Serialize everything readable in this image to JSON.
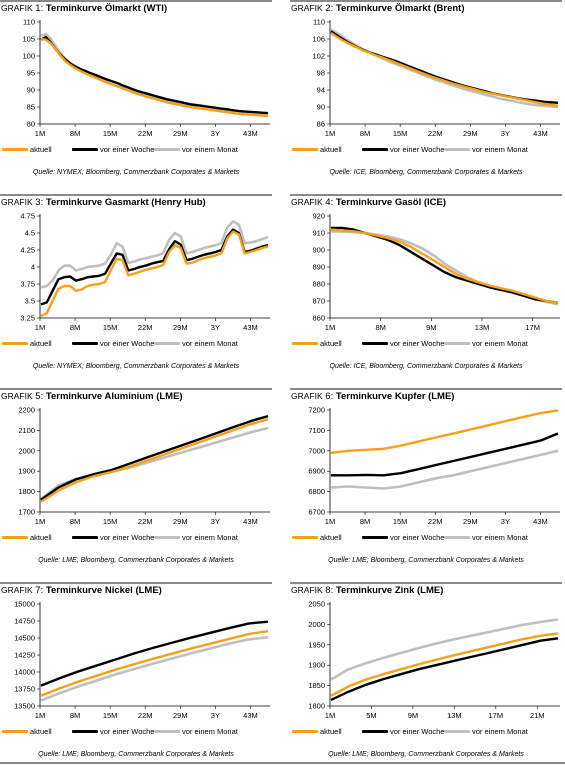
{
  "colors": {
    "aktuell": "#f5a01a",
    "woche": "#000000",
    "monat": "#bfbfbf",
    "axis": "#000000",
    "rule": "#8a8a8a"
  },
  "legend": {
    "aktuell": "aktuell",
    "woche": "vor einer Woche",
    "monat": "vor einem Monat"
  },
  "charts": [
    {
      "prefix": "GRAFIK",
      "number": "1:",
      "title": "Terminkurve Ölmarkt (WTI)",
      "source": "Quelle: NYMEX; Bloomberg, Commerzbank Corporates & Markets",
      "chart_data": {
        "type": "line",
        "xlabels": [
          "1M",
          "8M",
          "15M",
          "22M",
          "29M",
          "3Y",
          "43M"
        ],
        "ylabels": [
          "80",
          "85",
          "90",
          "95",
          "100",
          "105",
          "110"
        ],
        "ylim": [
          80,
          110
        ],
        "series": [
          {
            "key": "aktuell",
            "values": [
              105,
              104.8,
              103.8,
              102,
              100.2,
              98.6,
              97.4,
              96.5,
              95.7,
              95,
              94.4,
              93.8,
              93.2,
              92.6,
              92,
              91.5,
              91,
              90.4,
              89.9,
              89.3,
              88.8,
              88.4,
              88,
              87.6,
              87.2,
              86.8,
              86.4,
              86.1,
              85.8,
              85.5,
              85.2,
              85,
              84.8,
              84.6,
              84.4,
              84.2,
              84,
              83.8,
              83.6,
              83.4,
              83.2,
              83,
              82.9,
              82.8,
              82.7,
              82.6,
              82.5,
              82.4
            ]
          },
          {
            "key": "woche",
            "values": [
              104.8,
              105.6,
              104,
              102,
              100.4,
              99,
              97.9,
              97,
              96.3,
              95.7,
              95.1,
              94.6,
              94,
              93.4,
              92.9,
              92.4,
              91.9,
              91.3,
              90.8,
              90.2,
              89.7,
              89.3,
              88.9,
              88.5,
              88.1,
              87.7,
              87.3,
              87,
              86.7,
              86.4,
              86.1,
              85.8,
              85.6,
              85.4,
              85.2,
              85,
              84.8,
              84.6,
              84.4,
              84.2,
              84,
              83.8,
              83.7,
              83.6,
              83.5,
              83.4,
              83.3,
              83.2
            ]
          },
          {
            "key": "monat",
            "values": [
              106,
              106.4,
              105,
              103,
              100.9,
              99.2,
              97.8,
              96.7,
              95.8,
              95,
              94.4,
              93.8,
              93.2,
              92.6,
              92,
              91.5,
              91,
              90.5,
              90,
              89.5,
              89,
              88.6,
              88.2,
              87.8,
              87.4,
              87,
              86.6,
              86.3,
              86,
              85.7,
              85.4,
              85.1,
              84.8,
              84.6,
              84.4,
              84.2,
              84,
              83.8,
              83.6,
              83.4,
              83.2,
              83,
              82.9,
              82.8,
              82.7,
              82.6,
              82.5,
              82.4
            ]
          }
        ]
      }
    },
    {
      "prefix": "GRAFIK",
      "number": "2:",
      "title": "Terminkurve Ölmarkt (Brent)",
      "source": "Quelle: ICE, Bloomberg, Commerzbank Corporates & Markets",
      "chart_data": {
        "type": "line",
        "xlabels": [
          "1M",
          "8M",
          "15M",
          "22M",
          "29M",
          "3Y",
          "43M"
        ],
        "ylabels": [
          "86",
          "90",
          "94",
          "98",
          "102",
          "106",
          "110"
        ],
        "ylim": [
          86,
          110
        ],
        "series": [
          {
            "key": "aktuell",
            "values": [
              107.4,
              106.4,
              105.5,
              104.7,
              104,
              103.3,
              102.7,
              102.1,
              101.6,
              101,
              100.4,
              99.8,
              99.2,
              98.6,
              98,
              97.4,
              96.9,
              96.4,
              95.9,
              95.4,
              95,
              94.6,
              94.2,
              93.8,
              93.4,
              93.1,
              92.8,
              92.5,
              92.2,
              91.9,
              91.6,
              91.3,
              91,
              90.7,
              90.5,
              90.3
            ]
          },
          {
            "key": "woche",
            "values": [
              107.8,
              106.8,
              105.8,
              104.9,
              104.1,
              103.4,
              102.8,
              102.3,
              101.8,
              101.3,
              100.8,
              100.2,
              99.6,
              99,
              98.4,
              97.8,
              97.2,
              96.7,
              96.2,
              95.7,
              95.2,
              94.8,
              94.4,
              94,
              93.6,
              93.2,
              92.9,
              92.6,
              92.3,
              92,
              91.8,
              91.6,
              91.4,
              91.2,
              91.1,
              91
            ]
          },
          {
            "key": "monat",
            "values": [
              108.2,
              107.3,
              106.3,
              105.3,
              104.4,
              103.5,
              102.8,
              102.1,
              101.4,
              100.7,
              100.1,
              99.5,
              98.9,
              98.3,
              97.7,
              97.1,
              96.5,
              96,
              95.5,
              95,
              94.5,
              94,
              93.6,
              93.2,
              92.8,
              92.4,
              92,
              91.7,
              91.4,
              91.1,
              90.8,
              90.6,
              90.4,
              90.2,
              90.1,
              90
            ]
          }
        ]
      }
    },
    {
      "prefix": "GRAFIK",
      "number": "3:",
      "title": "Terminkurve Gasmarkt (Henry Hub)",
      "source": "Quelle: NYMEX; Bloomberg, Commerzbank Corporates & Markets",
      "chart_data": {
        "type": "line",
        "xlabels": [
          "1M",
          "8M",
          "15M",
          "22M",
          "29M",
          "3Y",
          "43M"
        ],
        "ylabels": [
          "3.25",
          "3.5",
          "3.75",
          "4",
          "4.25",
          "4.5",
          "4.75"
        ],
        "ylim": [
          3.25,
          4.75
        ],
        "series": [
          {
            "key": "aktuell",
            "values": [
              3.28,
              3.32,
              3.5,
              3.68,
              3.72,
              3.72,
              3.65,
              3.67,
              3.72,
              3.74,
              3.75,
              3.78,
              3.95,
              4.12,
              4.1,
              3.88,
              3.9,
              3.93,
              3.96,
              3.98,
              4,
              4.03,
              4.22,
              4.32,
              4.28,
              4.05,
              4.06,
              4.1,
              4.13,
              4.15,
              4.17,
              4.2,
              4.42,
              4.52,
              4.48,
              4.2,
              4.22,
              4.25,
              4.28,
              4.3
            ]
          },
          {
            "key": "woche",
            "values": [
              3.45,
              3.48,
              3.65,
              3.82,
              3.85,
              3.86,
              3.8,
              3.82,
              3.85,
              3.86,
              3.87,
              3.9,
              4.05,
              4.2,
              4.18,
              3.95,
              3.97,
              4,
              4.02,
              4.05,
              4.07,
              4.09,
              4.26,
              4.38,
              4.33,
              4.1,
              4.12,
              4.15,
              4.18,
              4.2,
              4.22,
              4.25,
              4.45,
              4.55,
              4.5,
              4.22,
              4.24,
              4.27,
              4.3,
              4.32
            ]
          },
          {
            "key": "monat",
            "values": [
              3.7,
              3.72,
              3.8,
              3.95,
              4.02,
              4.02,
              3.95,
              3.97,
              4,
              4.01,
              4.02,
              4.05,
              4.18,
              4.35,
              4.3,
              4.06,
              4.08,
              4.11,
              4.13,
              4.15,
              4.17,
              4.2,
              4.4,
              4.5,
              4.45,
              4.2,
              4.22,
              4.25,
              4.28,
              4.3,
              4.32,
              4.35,
              4.58,
              4.67,
              4.62,
              4.35,
              4.36,
              4.38,
              4.41,
              4.44
            ]
          }
        ]
      }
    },
    {
      "prefix": "GRAFIK",
      "number": "4:",
      "title": "Terminkurve Gasöl (ICE)",
      "source": "Quelle: ICE, Bloomberg, Commerzbank Corporates & Markets",
      "chart_data": {
        "type": "line",
        "xlabels": [
          "1M",
          "8M",
          "9M",
          "13M",
          "17M"
        ],
        "ylabels": [
          "860",
          "870",
          "880",
          "890",
          "900",
          "910",
          "920"
        ],
        "ylim": [
          860,
          920
        ],
        "series": [
          {
            "key": "aktuell",
            "values": [
              912,
              911.5,
              911,
              910,
              908.5,
              907,
              905,
              902,
              898,
              894,
              890,
              886,
              883,
              881,
              879,
              877.5,
              876,
              874,
              872,
              870,
              869
            ]
          },
          {
            "key": "woche",
            "values": [
              913,
              913,
              912,
              910,
              908,
              906,
              903,
              899,
              895,
              891,
              887,
              884,
              882,
              880,
              878,
              876.5,
              875,
              873,
              871,
              870,
              869
            ]
          },
          {
            "key": "monat",
            "values": [
              911,
              910.8,
              910.5,
              910,
              909,
              908,
              906.5,
              904,
              901,
              897,
              892,
              888,
              884,
              881,
              879,
              877,
              875,
              873,
              871,
              869.5,
              868
            ]
          }
        ]
      }
    },
    {
      "prefix": "GRAFIK",
      "number": "5:",
      "title": "Terminkurve Aluminium (LME)",
      "source": "Quelle: LME; Bloomberg, Commerzbank Corporates & Markets",
      "chart_data": {
        "type": "line",
        "xlabels": [
          "1M",
          "8M",
          "15M",
          "22M",
          "29M",
          "3Y",
          "43M"
        ],
        "ylabels": [
          "1700",
          "1800",
          "1900",
          "2000",
          "2100",
          "2200"
        ],
        "ylim": [
          1700,
          2200
        ],
        "series": [
          {
            "key": "aktuell",
            "values": [
              1750,
              1805,
              1845,
              1875,
              1895,
              1920,
              1950,
              1980,
              2010,
              2040,
              2070,
              2100,
              2130,
              2155
            ]
          },
          {
            "key": "woche",
            "values": [
              1760,
              1820,
              1860,
              1885,
              1905,
              1935,
              1965,
              1995,
              2025,
              2055,
              2085,
              2115,
              2145,
              2170
            ]
          },
          {
            "key": "monat",
            "values": [
              1765,
              1830,
              1862,
              1880,
              1897,
              1915,
              1940,
              1965,
              1990,
              2015,
              2040,
              2065,
              2090,
              2112
            ]
          }
        ]
      }
    },
    {
      "prefix": "GRAFIK",
      "number": "6:",
      "title": "Terminkurve Kupfer (LME)",
      "source": "Quelle: LME; Bloomberg, Commerzbank Corporates & Markets",
      "chart_data": {
        "type": "line",
        "xlabels": [
          "1M",
          "8M",
          "15M",
          "22M",
          "29M",
          "3Y",
          "43M"
        ],
        "ylabels": [
          "6700",
          "6800",
          "6900",
          "7000",
          "7100",
          "7200"
        ],
        "ylim": [
          6700,
          7200
        ],
        "series": [
          {
            "key": "aktuell",
            "values": [
              6990,
              7000,
              7005,
              7010,
              7025,
              7045,
              7065,
              7085,
              7105,
              7125,
              7145,
              7165,
              7185,
              7198
            ]
          },
          {
            "key": "woche",
            "values": [
              6880,
              6880,
              6882,
              6880,
              6890,
              6910,
              6930,
              6950,
              6970,
              6990,
              7010,
              7030,
              7050,
              7085
            ]
          },
          {
            "key": "monat",
            "values": [
              6820,
              6825,
              6820,
              6815,
              6825,
              6845,
              6865,
              6880,
              6900,
              6920,
              6940,
              6960,
              6980,
              7000
            ]
          }
        ]
      }
    },
    {
      "prefix": "GRAFIK",
      "number": "7:",
      "title": "Terminkurve Nickel (LME)",
      "source": "Quelle: LME; Bloomberg, Commerzbank Corporates & Markets",
      "chart_data": {
        "type": "line",
        "xlabels": [
          "1M",
          "8M",
          "15M",
          "22M",
          "29M",
          "3Y",
          "43M"
        ],
        "ylabels": [
          "13500",
          "13750",
          "14000",
          "14250",
          "14500",
          "14750",
          "15000"
        ],
        "ylim": [
          13500,
          15000
        ],
        "series": [
          {
            "key": "aktuell",
            "values": [
              13650,
              13760,
              13860,
              13950,
              14040,
              14120,
              14200,
              14275,
              14350,
              14420,
              14490,
              14560,
              14600
            ]
          },
          {
            "key": "woche",
            "values": [
              13800,
              13910,
              14010,
              14100,
              14190,
              14280,
              14360,
              14435,
              14510,
              14580,
              14650,
              14715,
              14740
            ]
          },
          {
            "key": "monat",
            "values": [
              13580,
              13690,
              13790,
              13880,
              13970,
              14050,
              14130,
              14205,
              14280,
              14350,
              14420,
              14480,
              14510
            ]
          }
        ]
      }
    },
    {
      "prefix": "GRAFIK",
      "number": "8:",
      "title": "Terminkurve Zink (LME)",
      "source": "Quelle: LME; Bloomberg, Commerzbank Corporates & Markets",
      "chart_data": {
        "type": "line",
        "xlabels": [
          "1M",
          "5M",
          "9M",
          "13M",
          "17M",
          "21M"
        ],
        "ylabels": [
          "1800",
          "1850",
          "1900",
          "1950",
          "2000",
          "2050"
        ],
        "ylim": [
          1800,
          2050
        ],
        "series": [
          {
            "key": "aktuell",
            "values": [
              1825,
              1848,
              1865,
              1878,
              1890,
              1902,
              1913,
              1924,
              1934,
              1944,
              1954,
              1964,
              1972,
              1978
            ]
          },
          {
            "key": "woche",
            "values": [
              1815,
              1835,
              1852,
              1866,
              1878,
              1890,
              1900,
              1910,
              1920,
              1930,
              1940,
              1950,
              1960,
              1966
            ]
          },
          {
            "key": "monat",
            "values": [
              1865,
              1890,
              1905,
              1918,
              1930,
              1942,
              1953,
              1963,
              1972,
              1981,
              1990,
              1999,
              2006,
              2012
            ]
          }
        ]
      }
    }
  ]
}
